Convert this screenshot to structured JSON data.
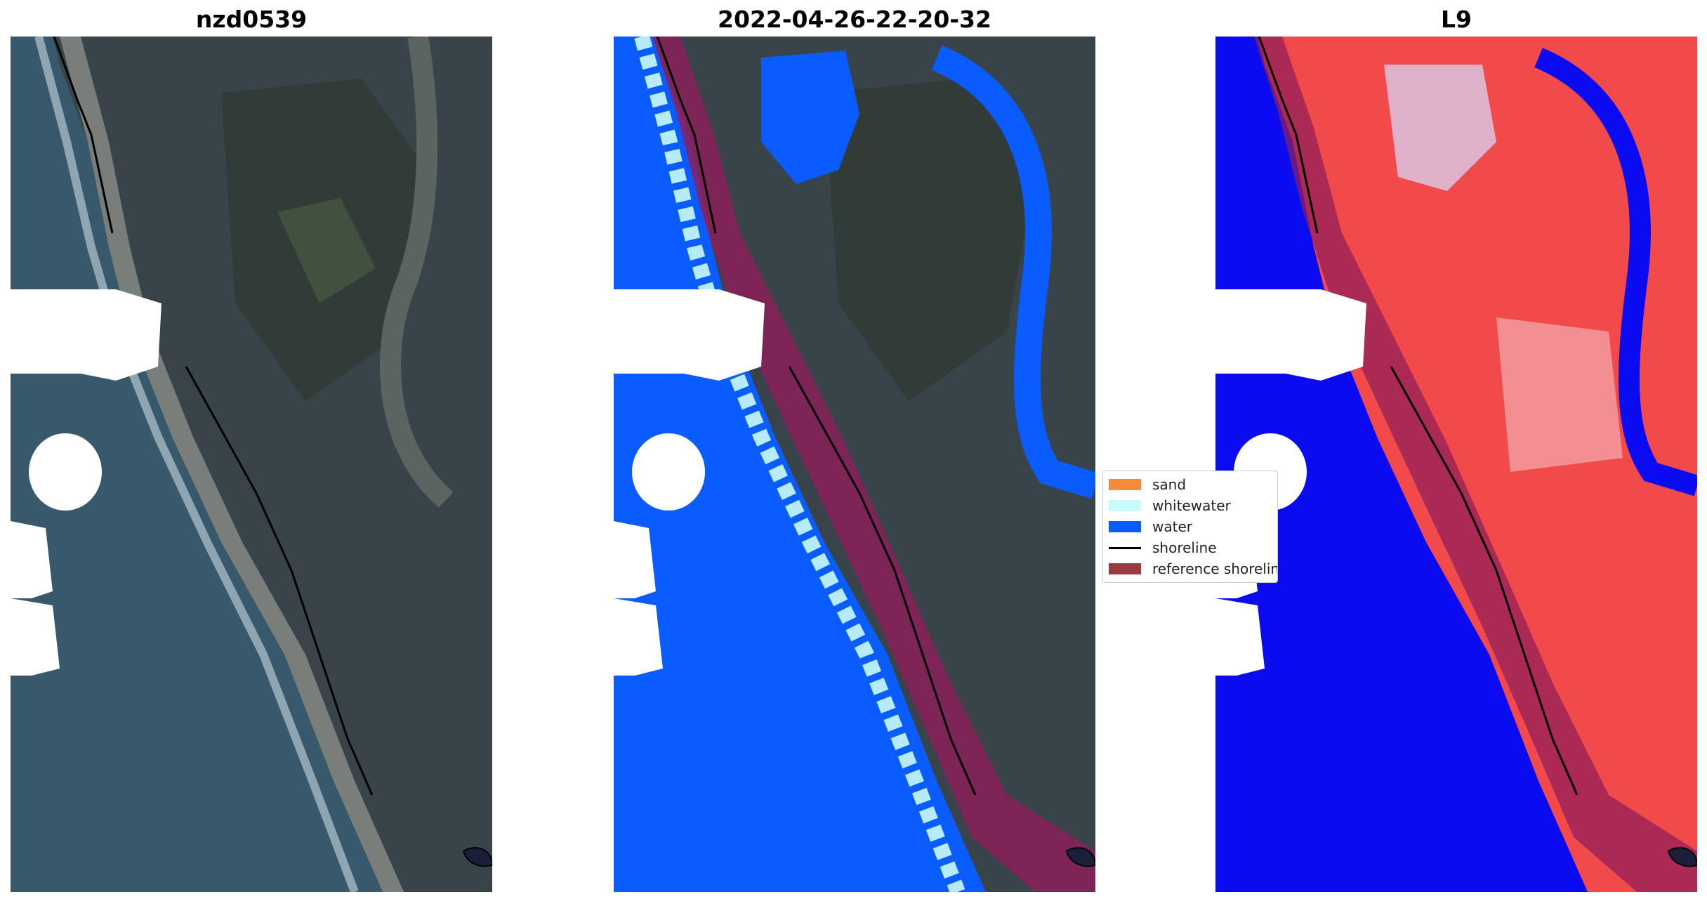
{
  "panels": [
    {
      "title": "nzd0539",
      "view": "rgb-image"
    },
    {
      "title": "2022-04-26-22-20-32",
      "view": "classified-image"
    },
    {
      "title": "L9",
      "view": "water-index-image"
    }
  ],
  "legend": {
    "items": [
      {
        "label": "sand",
        "color": "#f58a3a",
        "kind": "patch"
      },
      {
        "label": "whitewater",
        "color": "#c9fbfb",
        "kind": "patch"
      },
      {
        "label": "water",
        "color": "#0a5cff",
        "kind": "patch"
      },
      {
        "label": "shoreline",
        "color": "#000000",
        "kind": "line"
      },
      {
        "label": "reference shoreline buffer",
        "color": "#9a3a3f",
        "kind": "patch"
      }
    ]
  },
  "colors": {
    "ocean": "#37596b",
    "land": "#39434a",
    "class_water": "#0a5cff",
    "index_water": "#0b0bf2",
    "index_land": "#f24a4a",
    "buffer": "#8e1e5a"
  }
}
